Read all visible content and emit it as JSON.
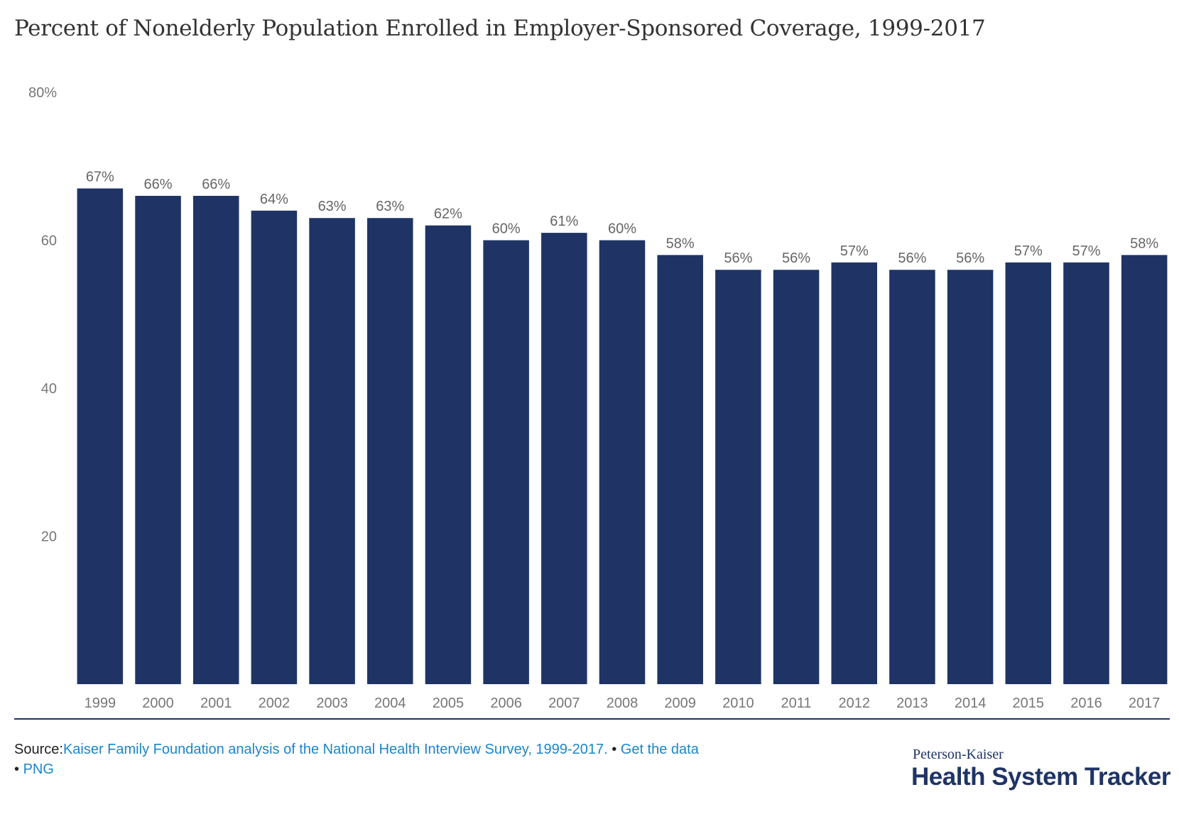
{
  "title": "Percent of Nonelderly Population Enrolled in Employer-Sponsored Coverage, 1999-2017",
  "colors": {
    "bar": "#1f3465",
    "tick_text": "#777777",
    "label_text": "#666666",
    "link": "#1a86c8"
  },
  "chart_data": {
    "type": "bar",
    "categories": [
      "1999",
      "2000",
      "2001",
      "2002",
      "2003",
      "2004",
      "2005",
      "2006",
      "2007",
      "2008",
      "2009",
      "2010",
      "2011",
      "2012",
      "2013",
      "2014",
      "2015",
      "2016",
      "2017"
    ],
    "values": [
      67,
      66,
      66,
      64,
      63,
      63,
      62,
      60,
      61,
      60,
      58,
      56,
      56,
      57,
      56,
      56,
      57,
      57,
      58
    ],
    "data_labels": [
      "67%",
      "66%",
      "66%",
      "64%",
      "63%",
      "63%",
      "62%",
      "60%",
      "61%",
      "60%",
      "58%",
      "56%",
      "56%",
      "57%",
      "56%",
      "56%",
      "57%",
      "57%",
      "58%"
    ],
    "ylim": [
      0,
      80
    ],
    "yticks": [
      20,
      40,
      60,
      80
    ],
    "ytick_labels": [
      "20",
      "40",
      "60",
      "80%"
    ],
    "grid": false,
    "xlabel": "",
    "ylabel": ""
  },
  "footer": {
    "source_label": "Source:",
    "source_link": "Kaiser Family Foundation analysis of the National Health Interview Survey, 1999-2017.",
    "bullet1": " • ",
    "get_data": "Get the data",
    "bullet2": "• ",
    "png": "PNG"
  },
  "logo": {
    "line1": "Peterson-Kaiser",
    "line2": "Health System Tracker"
  }
}
